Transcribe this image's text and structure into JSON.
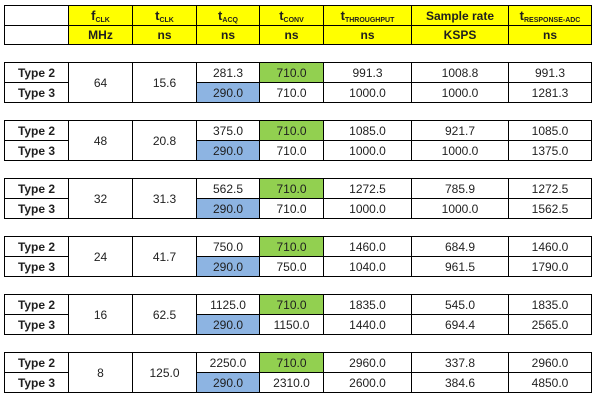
{
  "header": {
    "fclk": {
      "sym": "f",
      "sub": "CLK",
      "unit": "MHz"
    },
    "tclk": {
      "sym": "t",
      "sub": "CLK",
      "unit": "ns"
    },
    "tacq": {
      "sym": "t",
      "sub": "ACQ",
      "unit": "ns"
    },
    "tconv": {
      "sym": "t",
      "sub": "CONV",
      "unit": "ns"
    },
    "tthroughput": {
      "sym": "t",
      "sub": "THROUGHPUT",
      "unit": "ns"
    },
    "sample_rate": {
      "label": "Sample rate",
      "unit": "KSPS"
    },
    "tresponse": {
      "sym": "t",
      "sub": "RESPONSE-ADC",
      "unit": "ns"
    }
  },
  "colors": {
    "header_bg": "#ffff00",
    "green": "#92d050",
    "blue": "#8db4e2"
  },
  "groups": [
    {
      "fclk": "64",
      "tclk": "15.6",
      "rows": [
        {
          "type": "Type 2",
          "tacq": "281.3",
          "tconv": "710.0",
          "tthroughput": "991.3",
          "sample_rate": "1008.8",
          "tresponse": "991.3"
        },
        {
          "type": "Type 3",
          "tacq": "290.0",
          "tconv": "710.0",
          "tthroughput": "1000.0",
          "sample_rate": "1000.0",
          "tresponse": "1281.3"
        }
      ]
    },
    {
      "fclk": "48",
      "tclk": "20.8",
      "rows": [
        {
          "type": "Type 2",
          "tacq": "375.0",
          "tconv": "710.0",
          "tthroughput": "1085.0",
          "sample_rate": "921.7",
          "tresponse": "1085.0"
        },
        {
          "type": "Type 3",
          "tacq": "290.0",
          "tconv": "710.0",
          "tthroughput": "1000.0",
          "sample_rate": "1000.0",
          "tresponse": "1375.0"
        }
      ]
    },
    {
      "fclk": "32",
      "tclk": "31.3",
      "rows": [
        {
          "type": "Type 2",
          "tacq": "562.5",
          "tconv": "710.0",
          "tthroughput": "1272.5",
          "sample_rate": "785.9",
          "tresponse": "1272.5"
        },
        {
          "type": "Type 3",
          "tacq": "290.0",
          "tconv": "710.0",
          "tthroughput": "1000.0",
          "sample_rate": "1000.0",
          "tresponse": "1562.5"
        }
      ]
    },
    {
      "fclk": "24",
      "tclk": "41.7",
      "rows": [
        {
          "type": "Type 2",
          "tacq": "750.0",
          "tconv": "710.0",
          "tthroughput": "1460.0",
          "sample_rate": "684.9",
          "tresponse": "1460.0"
        },
        {
          "type": "Type 3",
          "tacq": "290.0",
          "tconv": "750.0",
          "tthroughput": "1040.0",
          "sample_rate": "961.5",
          "tresponse": "1790.0"
        }
      ]
    },
    {
      "fclk": "16",
      "tclk": "62.5",
      "rows": [
        {
          "type": "Type 2",
          "tacq": "1125.0",
          "tconv": "710.0",
          "tthroughput": "1835.0",
          "sample_rate": "545.0",
          "tresponse": "1835.0"
        },
        {
          "type": "Type 3",
          "tacq": "290.0",
          "tconv": "1150.0",
          "tthroughput": "1440.0",
          "sample_rate": "694.4",
          "tresponse": "2565.0"
        }
      ]
    },
    {
      "fclk": "8",
      "tclk": "125.0",
      "rows": [
        {
          "type": "Type 2",
          "tacq": "2250.0",
          "tconv": "710.0",
          "tthroughput": "2960.0",
          "sample_rate": "337.8",
          "tresponse": "2960.0"
        },
        {
          "type": "Type 3",
          "tacq": "290.0",
          "tconv": "2310.0",
          "tthroughput": "2600.0",
          "sample_rate": "384.6",
          "tresponse": "4850.0"
        }
      ]
    }
  ]
}
